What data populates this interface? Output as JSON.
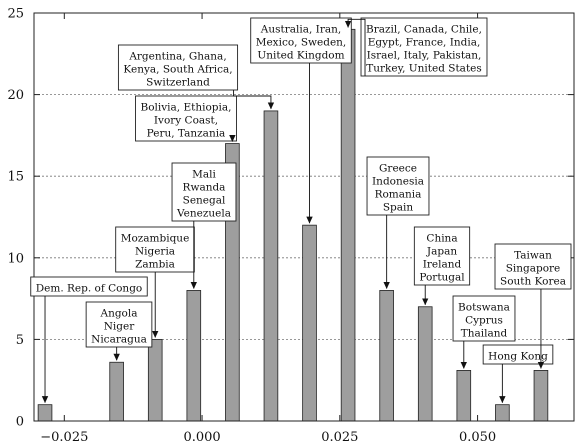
{
  "chart_data": {
    "type": "bar",
    "title": "",
    "xlabel": "",
    "ylabel": "",
    "xlim": [
      -0.0305,
      0.0675
    ],
    "ylim": [
      0,
      25
    ],
    "xticks": [
      -0.025,
      0.0,
      0.025,
      0.05
    ],
    "xtick_labels": [
      "−0.025",
      "0.000",
      "0.025",
      "0.050"
    ],
    "yticks": [
      0,
      5,
      10,
      15,
      20,
      25
    ],
    "ytick_labels": [
      "0",
      "5",
      "10",
      "15",
      "20",
      "25"
    ],
    "grid": "horizontal dashed",
    "bar_width": 0.0025,
    "bar_color": "#9e9e9e",
    "bars": [
      {
        "x": -0.0285,
        "value": 1
      },
      {
        "x": -0.0155,
        "value": 3.6
      },
      {
        "x": -0.0085,
        "value": 5
      },
      {
        "x": -0.0015,
        "value": 8
      },
      {
        "x": 0.0055,
        "value": 17
      },
      {
        "x": 0.0125,
        "value": 19
      },
      {
        "x": 0.0195,
        "value": 12
      },
      {
        "x": 0.0265,
        "value": 24
      },
      {
        "x": 0.0335,
        "value": 8
      },
      {
        "x": 0.0405,
        "value": 7
      },
      {
        "x": 0.0475,
        "value": 3.1
      },
      {
        "x": 0.0545,
        "value": 1
      },
      {
        "x": 0.0615,
        "value": 3.1
      }
    ],
    "annotations": [
      {
        "bar": 0,
        "lines": [
          "Dem. Rep. of Congo"
        ]
      },
      {
        "bar": 1,
        "lines": [
          "Angola",
          "Niger",
          "Nicaragua"
        ]
      },
      {
        "bar": 2,
        "lines": [
          "Mozambique",
          "Nigeria",
          "Zambia"
        ]
      },
      {
        "bar": 3,
        "lines": [
          "Mali",
          "Rwanda",
          "Senegal",
          "Venezuela"
        ]
      },
      {
        "bar": 4,
        "lines": [
          "Bolivia, Ethiopia,",
          "Ivory Coast,",
          "Peru, Tanzania"
        ]
      },
      {
        "bar": 5,
        "lines": [
          "Argentina, Ghana,",
          "Kenya, South Africa,",
          "Switzerland"
        ]
      },
      {
        "bar": 6,
        "lines": [
          "Australia, Iran,",
          "Mexico, Sweden,",
          "United Kingdom"
        ]
      },
      {
        "bar": 7,
        "lines": [
          "Brazil, Canada, Chile,",
          "Egypt, France, India,",
          "Israel, Italy, Pakistan,",
          "Turkey, United States"
        ]
      },
      {
        "bar": 8,
        "lines": [
          "Greece",
          "Indonesia",
          "Romania",
          "Spain"
        ]
      },
      {
        "bar": 9,
        "lines": [
          "China",
          "Japan",
          "Ireland",
          "Portugal"
        ]
      },
      {
        "bar": 10,
        "lines": [
          "Botswana",
          "Cyprus",
          "Thailand"
        ]
      },
      {
        "bar": 11,
        "lines": [
          "Hong Kong"
        ]
      },
      {
        "bar": 12,
        "lines": [
          "Taiwan",
          "Singapore",
          "South Korea"
        ]
      }
    ]
  }
}
